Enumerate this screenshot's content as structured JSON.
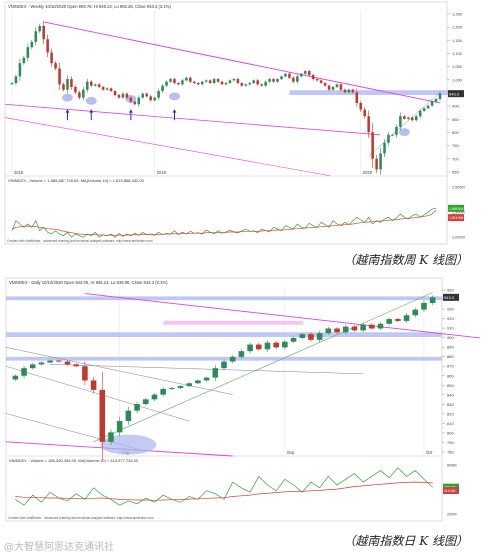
{
  "chart_data": [
    {
      "type": "candlestick",
      "header": "VNINDEX - Weekly 10/10/2020 Open 909.76, Hi 946.23, Lo 903.28, Close 943.3 (3.1%)",
      "y_ticks": [
        "1,250",
        "1,200",
        "1,150",
        "1,100",
        "1,050",
        "1,000",
        "950",
        "900",
        "850",
        "800",
        "750",
        "700",
        "650"
      ],
      "ylim": [
        635,
        1260
      ],
      "x_labels": [
        {
          "label": "2018",
          "at": 0
        },
        {
          "label": "2019",
          "at": 36
        },
        {
          "label": "2020",
          "at": 88
        }
      ],
      "last_price_label": "943.3",
      "close": [
        985,
        1010,
        1060,
        1080,
        1120,
        1140,
        1180,
        1200,
        1150,
        1100,
        1060,
        1040,
        980,
        960,
        1000,
        970,
        950,
        930,
        960,
        990,
        975,
        980,
        970,
        960,
        965,
        955,
        940,
        930,
        945,
        930,
        915,
        905,
        930,
        945,
        935,
        920,
        930,
        955,
        975,
        990,
        1000,
        985,
        980,
        995,
        1005,
        990,
        985,
        980,
        990,
        995,
        985,
        1000,
        990,
        980,
        985,
        995,
        1000,
        985,
        975,
        980,
        985,
        995,
        980,
        975,
        990,
        1000,
        990,
        1000,
        1010,
        1020,
        1005,
        990,
        1010,
        1020,
        1030,
        1015,
        1000,
        995,
        985,
        975,
        960,
        970,
        980,
        960,
        950,
        960,
        950,
        910,
        885,
        860,
        800,
        700,
        660,
        720,
        760,
        790,
        790,
        820,
        860,
        850,
        855,
        845,
        860,
        880,
        890,
        900,
        915,
        925,
        945
      ],
      "volume_panel": {
        "header": "VNINDEX - Volume = 1,869,887,728.00, MA(Volume,10) = 1,815,888,432.00",
        "y_ticks": [
          "2,500M",
          "1,500M",
          "1,000M"
        ],
        "ylim": [
          800,
          2600
        ],
        "volume_labels": [
          "1,869.9M",
          "1,815.9M"
        ],
        "volume": [
          1200,
          1500,
          1400,
          1300,
          1400,
          1300,
          1500,
          1200,
          1300,
          1150,
          1100,
          1200,
          1100,
          1050,
          1150,
          1000,
          1100,
          1050,
          1000,
          1100,
          1050,
          1150,
          1000,
          1080,
          1050,
          1100,
          1000,
          1120,
          1030,
          1100,
          1050,
          1120,
          1060,
          1150,
          1080,
          1100,
          1060,
          1150,
          1080,
          1120,
          1100,
          1200,
          1080,
          1150,
          1100,
          1180,
          1120,
          1140,
          1100,
          1220,
          1150,
          1100,
          1200,
          1120,
          1160,
          1210,
          1160,
          1130,
          1200,
          1250,
          1180,
          1200,
          1140,
          1250,
          1200,
          1160,
          1300,
          1250,
          1200,
          1350,
          1300,
          1250,
          1400,
          1300,
          1280,
          1420,
          1350,
          1300,
          1450,
          1380,
          1300,
          1500,
          1400,
          1350,
          1450,
          1380,
          1500,
          1600,
          1520,
          1450,
          1600,
          1400,
          1500,
          1450,
          1550,
          1600,
          1500,
          1580,
          1700,
          1600,
          1550,
          1650,
          1700,
          1600,
          1680,
          1750,
          1850,
          1870
        ],
        "ma": [
          1250,
          1300,
          1320,
          1330,
          1340,
          1320,
          1330,
          1300,
          1280,
          1260,
          1250,
          1240,
          1220,
          1180,
          1160,
          1140,
          1120,
          1100,
          1090,
          1080,
          1080,
          1080,
          1070,
          1070,
          1060,
          1070,
          1060,
          1070,
          1060,
          1070,
          1070,
          1080,
          1070,
          1090,
          1080,
          1090,
          1080,
          1090,
          1090,
          1100,
          1100,
          1110,
          1100,
          1120,
          1110,
          1120,
          1120,
          1130,
          1120,
          1140,
          1140,
          1140,
          1150,
          1140,
          1150,
          1160,
          1160,
          1160,
          1170,
          1180,
          1180,
          1180,
          1180,
          1190,
          1200,
          1200,
          1210,
          1220,
          1220,
          1230,
          1240,
          1250,
          1260,
          1270,
          1280,
          1290,
          1300,
          1300,
          1320,
          1330,
          1340,
          1350,
          1360,
          1370,
          1380,
          1390,
          1400,
          1420,
          1440,
          1450,
          1460,
          1470,
          1480,
          1490,
          1500,
          1510,
          1520,
          1530,
          1550,
          1560,
          1570,
          1580,
          1600,
          1610,
          1630,
          1650,
          1700,
          1816
        ]
      },
      "footer": "Created with AmiBroker - advanced charting and technical analysis software. http://www.amibroker.com"
    },
    {
      "type": "candlestick",
      "header": "VNINDEX - Daily 10/10/2020 Open 944.05, Hi 946.23, Lo 939.86, Close 943.3 (0.1%)",
      "y_ticks": [
        "950",
        "940",
        "930",
        "920",
        "910",
        "900",
        "890",
        "880",
        "870",
        "860",
        "850",
        "840",
        "830",
        "820",
        "810",
        "800",
        "790",
        "780"
      ],
      "ylim": [
        775,
        955
      ],
      "x_labels": [
        {
          "label": "Aug",
          "at": 12
        },
        {
          "label": "Sep",
          "at": 31
        },
        {
          "label": "Oct",
          "at": 47
        }
      ],
      "last_price_label": "943.3",
      "close": [
        860,
        868,
        872,
        874,
        876,
        875,
        872,
        870,
        855,
        845,
        790,
        800,
        812,
        823,
        830,
        835,
        840,
        846,
        847,
        849,
        852,
        855,
        858,
        868,
        875,
        880,
        886,
        893,
        888,
        895,
        890,
        896,
        900,
        904,
        898,
        905,
        910,
        906,
        912,
        908,
        914,
        910,
        915,
        920,
        918,
        924,
        930,
        937,
        943
      ],
      "volume_panel": {
        "header": "VNINDEX - Volume = 385,390,304.00, MA(Volume,10) = 413,977,728.00",
        "y_ticks": [
          "500M",
          "300M",
          "200M"
        ],
        "ylim": [
          150,
          560
        ],
        "volume_labels": [
          "385.4M",
          "414.0M"
        ],
        "volume": [
          300,
          260,
          330,
          280,
          350,
          310,
          290,
          340,
          300,
          380,
          330,
          300,
          260,
          290,
          270,
          310,
          280,
          330,
          300,
          280,
          320,
          300,
          360,
          340,
          300,
          420,
          380,
          350,
          460,
          400,
          360,
          440,
          400,
          350,
          420,
          380,
          460,
          400,
          440,
          480,
          420,
          460,
          500,
          450,
          520,
          460,
          500,
          440,
          385
        ],
        "ma": [
          320,
          315,
          315,
          312,
          310,
          310,
          308,
          306,
          305,
          308,
          310,
          305,
          300,
          298,
          296,
          296,
          294,
          296,
          298,
          298,
          302,
          304,
          308,
          310,
          312,
          320,
          325,
          330,
          338,
          342,
          348,
          352,
          355,
          356,
          360,
          362,
          368,
          372,
          380,
          390,
          394,
          400,
          405,
          410,
          415,
          418,
          420,
          418,
          414
        ]
      },
      "footer": "Created with AmiBroker - advanced charting and technical analysis software. http://www.amibroker.com"
    }
  ],
  "captions": [
    "（越南指数周 K 线图）",
    "（越南指数日 K 线图）"
  ],
  "watermark": "@大智慧阿思达克通讯社",
  "colors": {
    "up": "#2e8b57",
    "down": "#c0392b",
    "trend_magenta": "#e040e0",
    "support_band": "#aab4f0",
    "resistance_pink": "#ffb0f0",
    "volume_line": "#2fa52f",
    "ma_line": "#d04040"
  }
}
